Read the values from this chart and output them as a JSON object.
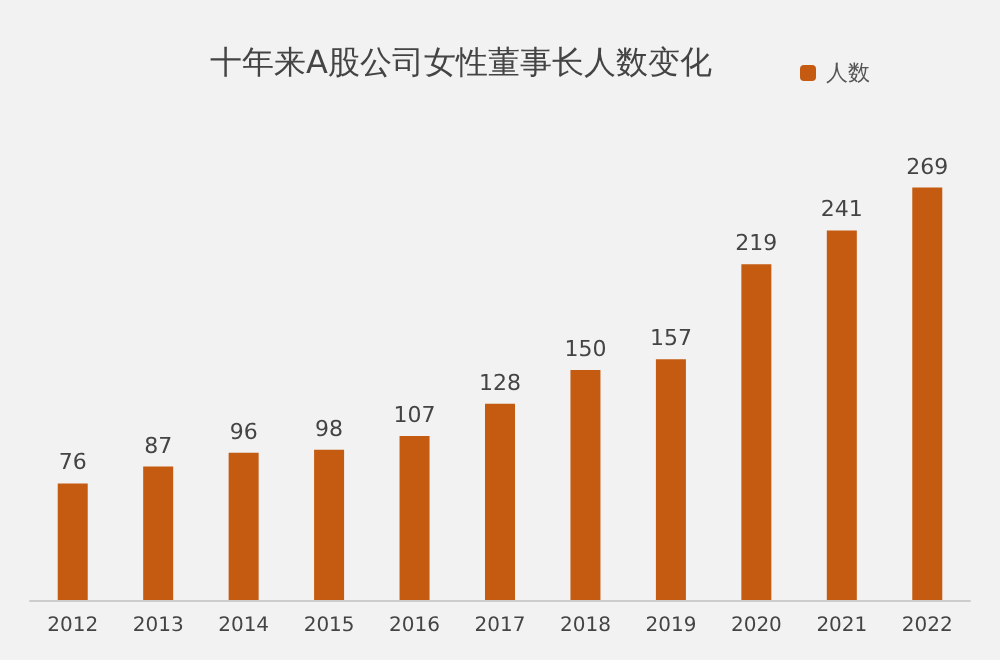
{
  "chart_data": {
    "type": "bar",
    "title": "十年来A股公司女性董事长人数变化",
    "categories": [
      "2012",
      "2013",
      "2014",
      "2015",
      "2016",
      "2017",
      "2018",
      "2019",
      "2020",
      "2021",
      "2022"
    ],
    "series": [
      {
        "name": "人数",
        "color": "#c55a11",
        "values": [
          76,
          87,
          96,
          98,
          107,
          128,
          150,
          157,
          219,
          241,
          269
        ]
      }
    ],
    "data_labels": true,
    "legend": "top right"
  }
}
